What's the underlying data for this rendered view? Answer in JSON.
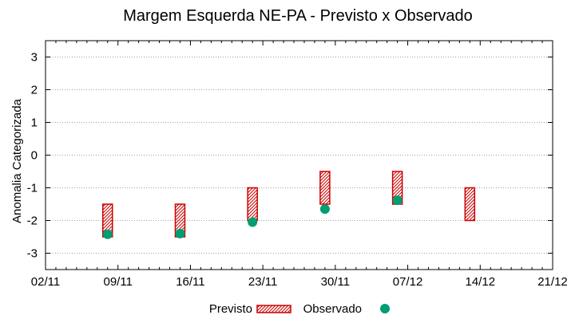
{
  "chart_data": {
    "type": "range-bar-scatter",
    "title": "Margem Esquerda NE-PA - Previsto x Observado",
    "xlabel": "",
    "ylabel": "Anomalia Categorizada",
    "x_ticks": [
      "02/11",
      "09/11",
      "16/11",
      "23/11",
      "30/11",
      "07/12",
      "14/12",
      "21/12"
    ],
    "x_range_days": [
      0,
      49
    ],
    "ylim": [
      -3.5,
      3.5
    ],
    "y_ticks": [
      3,
      2,
      1,
      0,
      -1,
      -2,
      -3
    ],
    "grid": true,
    "legend": [
      "Previsto",
      "Observado"
    ],
    "series": [
      {
        "name": "Previsto",
        "kind": "range",
        "color": "#cc0000",
        "points": [
          {
            "day": 6,
            "low": -2.5,
            "high": -1.5
          },
          {
            "day": 13,
            "low": -2.5,
            "high": -1.5
          },
          {
            "day": 20,
            "low": -2.0,
            "high": -1.0
          },
          {
            "day": 27,
            "low": -1.5,
            "high": -0.5
          },
          {
            "day": 34,
            "low": -1.5,
            "high": -0.5
          },
          {
            "day": 41,
            "low": -2.0,
            "high": -1.0
          }
        ]
      },
      {
        "name": "Observado",
        "kind": "point",
        "color": "#009e73",
        "points": [
          {
            "day": 6,
            "value": -2.42
          },
          {
            "day": 13,
            "value": -2.4
          },
          {
            "day": 20,
            "value": -2.05
          },
          {
            "day": 27,
            "value": -1.65
          },
          {
            "day": 34,
            "value": -1.38
          }
        ]
      }
    ]
  }
}
